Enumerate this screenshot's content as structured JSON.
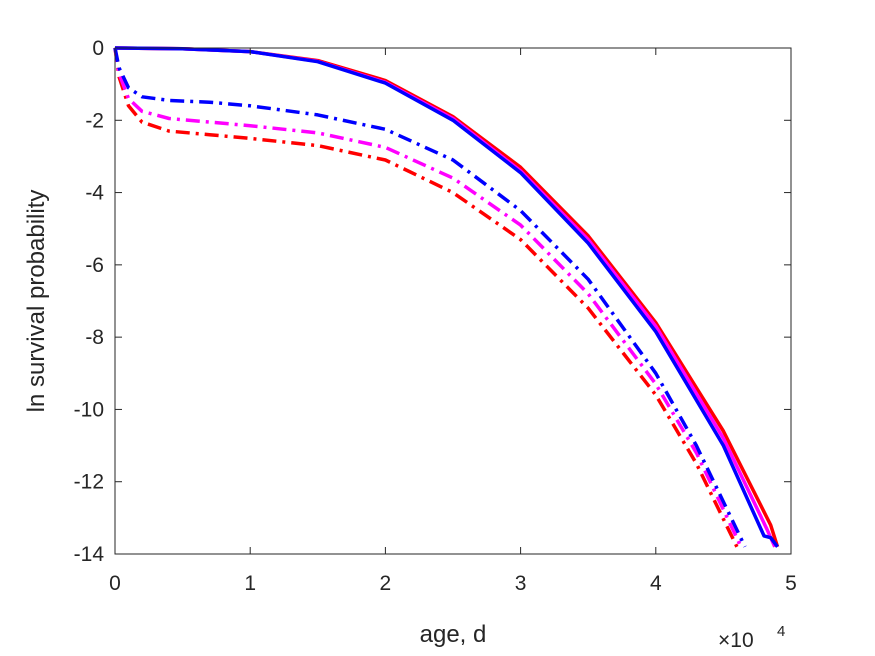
{
  "chart_data": {
    "type": "line",
    "xlabel": "age, d",
    "ylabel": "ln survival probability",
    "x_exponent_label": {
      "base": "×10",
      "power": "4"
    },
    "xlim": [
      0,
      5
    ],
    "ylim": [
      -14,
      0
    ],
    "x_ticks": [
      "0",
      "1",
      "2",
      "3",
      "4",
      "5"
    ],
    "y_ticks": [
      "0",
      "-2",
      "-4",
      "-6",
      "-8",
      "-10",
      "-12",
      "-14"
    ],
    "grid": false,
    "box": true,
    "series": [
      {
        "color": "#ff0000",
        "style": "solid",
        "x": [
          0,
          0.5,
          1,
          1.5,
          2,
          2.5,
          3,
          3.5,
          4,
          4.5,
          4.85,
          4.9
        ],
        "y": [
          0,
          -0.02,
          -0.1,
          -0.35,
          -0.9,
          -1.9,
          -3.3,
          -5.2,
          -7.6,
          -10.6,
          -13.2,
          -13.8
        ]
      },
      {
        "color": "#ff00ff",
        "style": "solid",
        "x": [
          0,
          0.5,
          1,
          1.5,
          2,
          2.5,
          3,
          3.5,
          4,
          4.5,
          4.82,
          4.88
        ],
        "y": [
          0,
          -0.02,
          -0.1,
          -0.37,
          -0.95,
          -1.95,
          -3.4,
          -5.3,
          -7.7,
          -10.8,
          -13.3,
          -13.8
        ]
      },
      {
        "color": "#0000ff",
        "style": "solid",
        "x": [
          0,
          0.5,
          1,
          1.5,
          2,
          2.5,
          3,
          3.5,
          4,
          4.5,
          4.8,
          4.85,
          4.9
        ],
        "y": [
          0,
          -0.02,
          -0.1,
          -0.38,
          -0.97,
          -2.0,
          -3.45,
          -5.4,
          -7.85,
          -11.0,
          -13.5,
          -13.55,
          -13.8
        ]
      },
      {
        "color": "#ff0000",
        "style": "dashdot",
        "x": [
          0,
          0.03,
          0.1,
          0.2,
          0.4,
          0.7,
          1,
          1.5,
          2,
          2.5,
          3,
          3.5,
          4,
          4.3,
          4.6
        ],
        "y": [
          0,
          -0.8,
          -1.6,
          -2.05,
          -2.3,
          -2.4,
          -2.5,
          -2.7,
          -3.1,
          -4.0,
          -5.3,
          -7.2,
          -9.6,
          -11.5,
          -13.8
        ]
      },
      {
        "color": "#ff00ff",
        "style": "dashdot",
        "x": [
          0,
          0.03,
          0.1,
          0.2,
          0.4,
          0.7,
          1,
          1.5,
          2,
          2.5,
          3,
          3.5,
          4,
          4.3,
          4.63
        ],
        "y": [
          0,
          -0.7,
          -1.4,
          -1.75,
          -1.95,
          -2.05,
          -2.15,
          -2.35,
          -2.75,
          -3.6,
          -4.9,
          -6.8,
          -9.3,
          -11.2,
          -13.8
        ]
      },
      {
        "color": "#0000ff",
        "style": "dashdot",
        "x": [
          0,
          0.03,
          0.1,
          0.2,
          0.4,
          0.7,
          1,
          1.5,
          2,
          2.5,
          3,
          3.5,
          4,
          4.3,
          4.66
        ],
        "y": [
          0,
          -0.55,
          -1.1,
          -1.35,
          -1.45,
          -1.5,
          -1.6,
          -1.85,
          -2.25,
          -3.1,
          -4.5,
          -6.4,
          -9.0,
          -11.0,
          -13.8
        ]
      }
    ]
  }
}
